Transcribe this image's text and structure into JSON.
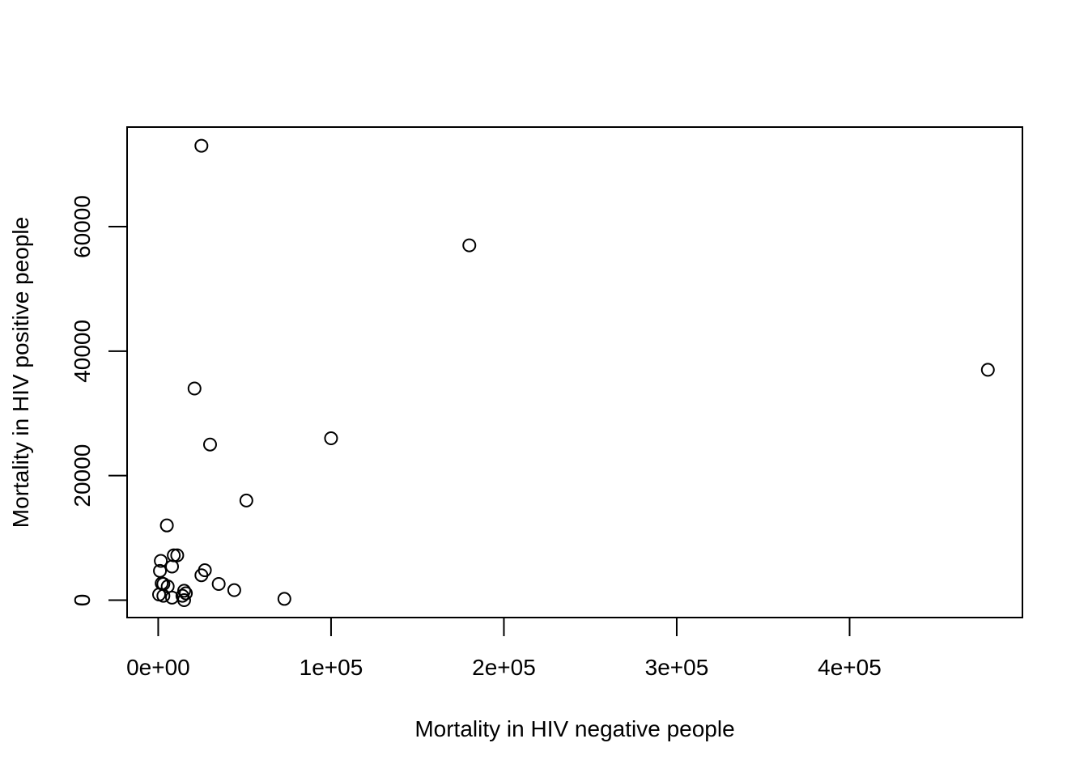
{
  "chart_data": {
    "type": "scatter",
    "title": "",
    "xlabel": "Mortality in HIV negative people",
    "ylabel": "Mortality in HIV positive people",
    "xlim": [
      -18000,
      500000
    ],
    "ylim": [
      -2800,
      76000
    ],
    "xticks": [
      {
        "value": 0,
        "label": "0e+00"
      },
      {
        "value": 100000,
        "label": "1e+05"
      },
      {
        "value": 200000,
        "label": "2e+05"
      },
      {
        "value": 300000,
        "label": "3e+05"
      },
      {
        "value": 400000,
        "label": "4e+05"
      }
    ],
    "yticks": [
      {
        "value": 0,
        "label": "0"
      },
      {
        "value": 20000,
        "label": "20000"
      },
      {
        "value": 40000,
        "label": "40000"
      },
      {
        "value": 60000,
        "label": "60000"
      }
    ],
    "grid": false,
    "points": [
      {
        "x": 25000,
        "y": 73000
      },
      {
        "x": 180000,
        "y": 57000
      },
      {
        "x": 480000,
        "y": 37000
      },
      {
        "x": 21000,
        "y": 34000
      },
      {
        "x": 100000,
        "y": 26000
      },
      {
        "x": 30000,
        "y": 25000
      },
      {
        "x": 51000,
        "y": 16000
      },
      {
        "x": 5000,
        "y": 12000
      },
      {
        "x": 9000,
        "y": 7200
      },
      {
        "x": 11000,
        "y": 7200
      },
      {
        "x": 1500,
        "y": 6300
      },
      {
        "x": 8000,
        "y": 5400
      },
      {
        "x": 27000,
        "y": 4800
      },
      {
        "x": 1000,
        "y": 4700
      },
      {
        "x": 25000,
        "y": 4000
      },
      {
        "x": 2000,
        "y": 2700
      },
      {
        "x": 3000,
        "y": 2600
      },
      {
        "x": 35000,
        "y": 2600
      },
      {
        "x": 5500,
        "y": 2200
      },
      {
        "x": 44000,
        "y": 1600
      },
      {
        "x": 15000,
        "y": 1500
      },
      {
        "x": 16000,
        "y": 1100
      },
      {
        "x": 500,
        "y": 900
      },
      {
        "x": 3000,
        "y": 700
      },
      {
        "x": 14000,
        "y": 700
      },
      {
        "x": 8000,
        "y": 400
      },
      {
        "x": 73000,
        "y": 200
      },
      {
        "x": 15000,
        "y": 0
      }
    ]
  }
}
